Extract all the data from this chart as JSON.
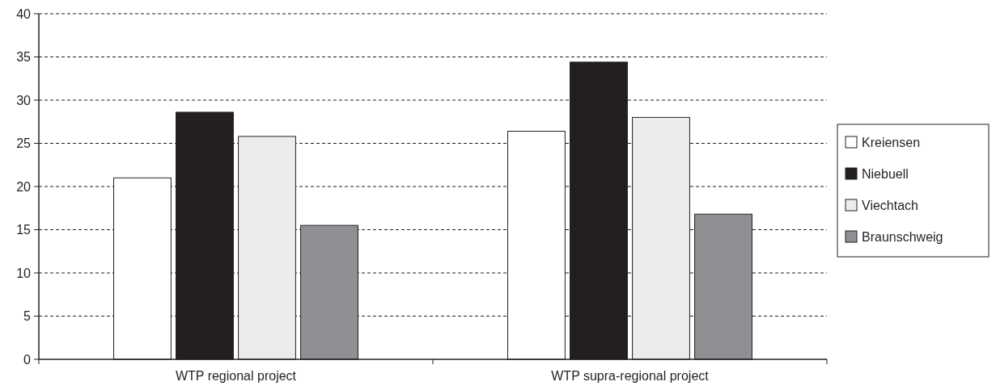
{
  "chart_data": {
    "type": "bar",
    "categories": [
      "WTP regional project",
      "WTP supra-regional project"
    ],
    "series": [
      {
        "name": "Kreiensen",
        "color": "#ffffff",
        "values": [
          21.0,
          26.4
        ]
      },
      {
        "name": "Niebuell",
        "color": "#231f20",
        "values": [
          28.6,
          34.4
        ]
      },
      {
        "name": "Viechtach",
        "color": "#ececec",
        "values": [
          25.8,
          28.0
        ]
      },
      {
        "name": "Braunschweig",
        "color": "#8f9093",
        "values": [
          15.5,
          16.8
        ]
      }
    ],
    "ylim": [
      0,
      40
    ],
    "yticks": [
      0,
      5,
      10,
      15,
      20,
      25,
      30,
      35,
      40
    ],
    "grid": "y",
    "legend": "right"
  }
}
